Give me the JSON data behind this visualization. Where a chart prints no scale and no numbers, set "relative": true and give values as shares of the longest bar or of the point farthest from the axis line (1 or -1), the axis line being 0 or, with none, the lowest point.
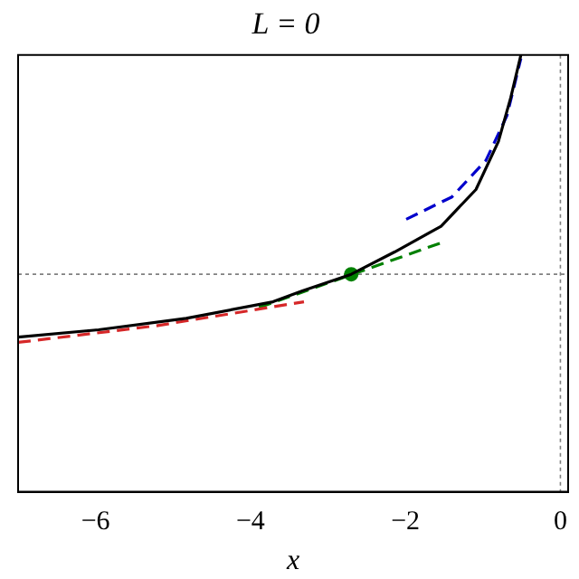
{
  "chart_data": {
    "type": "line",
    "title": "L = 0",
    "xlabel": "x",
    "relative": true,
    "tick_labels": "x",
    "grid": false,
    "legend": false,
    "xlim": [
      -7,
      0.1
    ],
    "xticks": [
      -6,
      -4,
      -2,
      0
    ],
    "series": [
      {
        "color": "#000000",
        "line_style": "solid",
        "marker": "none",
        "x": [
          -7.0,
          -5.96,
          -4.83,
          -3.71,
          -3.33,
          -2.7,
          -2.14,
          -1.54,
          -1.09,
          -0.8,
          -0.64,
          -0.51
        ],
        "values": [
          0.354,
          0.371,
          0.397,
          0.435,
          0.46,
          0.498,
          0.549,
          0.608,
          0.692,
          0.802,
          0.903,
          1.0
        ]
      },
      {
        "color": "#d62728",
        "line_style": "dashed",
        "marker": "none",
        "x": [
          -7.0,
          -5.22,
          -3.31
        ],
        "values": [
          0.342,
          0.38,
          0.435
        ]
      },
      {
        "color": "#008000",
        "line_style": "dashed",
        "marker": "none",
        "x": [
          -3.89,
          -1.54
        ],
        "values": [
          0.422,
          0.57
        ]
      },
      {
        "color": "#0000cc",
        "line_style": "dashed",
        "marker": "none",
        "x": [
          -1.99,
          -1.4,
          -0.96,
          -0.69,
          -0.51
        ],
        "values": [
          0.624,
          0.675,
          0.759,
          0.861,
          0.992
        ]
      },
      {
        "type": "scatter",
        "color": "#008000",
        "marker": "circle",
        "x": [
          -2.7
        ],
        "values": [
          0.498
        ]
      }
    ],
    "ref_lines": [
      {
        "axis": "y",
        "value": 0.498,
        "color": "#808080",
        "line_style": "dotted"
      },
      {
        "axis": "x",
        "value": 0,
        "color": "#808080",
        "line_style": "dotted"
      }
    ]
  }
}
